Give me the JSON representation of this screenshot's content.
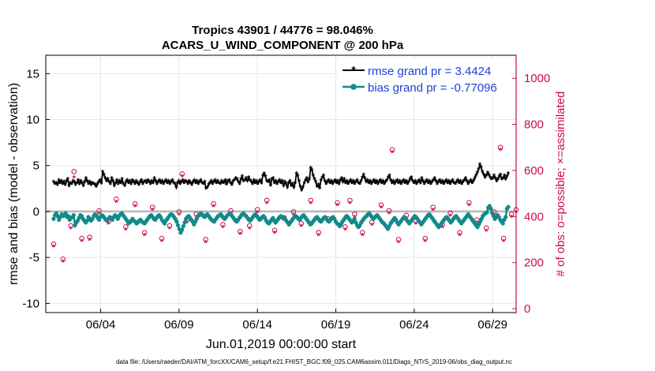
{
  "chart_data": {
    "type": "line",
    "title_line1": "Tropics 43901 / 44776 = 98.046%",
    "title_line2": "ACARS_U_WIND_COMPONENT @ 200 hPa",
    "ylabel": "rmse and bias (model - observation)",
    "ylabel_right": "# of obs: o=possible; ×=assimilated",
    "xlabel": "Jun.01,2019 00:00:00 start",
    "footnote": "data file: /Users/raeder/DAI/ATM_forcXX/CAM6_setup/f.e21.FHIST_BGC.f09_025.CAM6assim.011/Diags_NTrS_2019-06/obs_diag_output.nc",
    "xlim": [
      0.5,
      30.5
    ],
    "ylim": [
      -11,
      17
    ],
    "ylim_right": [
      -17,
      1100
    ],
    "yticks": [
      -10,
      -5,
      0,
      5,
      10,
      15
    ],
    "yticks_right": [
      0,
      200,
      400,
      600,
      800,
      1000
    ],
    "xticks": [
      {
        "x": 4,
        "label": "06/04"
      },
      {
        "x": 9,
        "label": "06/09"
      },
      {
        "x": 14,
        "label": "06/14"
      },
      {
        "x": 19,
        "label": "06/19"
      },
      {
        "x": 24,
        "label": "06/24"
      },
      {
        "x": 29,
        "label": "06/29"
      }
    ],
    "legend_position": "top-right",
    "colors": {
      "rmse": "#000000",
      "bias": "#128a8a",
      "obs": "#cc0a55",
      "zero_line": "#b8b8b8",
      "legend_text": "#1f3fd8",
      "grid": "#e6e6e6"
    },
    "series": [
      {
        "name": "rmse grand pr = 3.4424",
        "key": "rmse",
        "marker": "asterisk",
        "values": [
          3.2,
          3.0,
          3.1,
          2.9,
          3.4,
          3.1,
          3.3,
          3.0,
          3.2,
          2.9,
          3.3,
          3.5,
          2.8,
          3.1,
          3.0,
          3.3,
          3.2,
          2.9,
          3.1,
          3.4,
          3.0,
          3.3,
          3.1,
          2.8,
          3.2,
          3.6,
          3.3,
          3.0,
          3.2,
          2.9,
          3.1,
          3.0,
          2.9,
          2.7,
          3.0,
          3.2,
          3.4,
          3.1,
          4.3,
          4.0,
          3.6,
          3.3,
          3.5,
          3.2,
          3.0,
          3.6,
          3.3,
          2.8,
          3.1,
          3.4,
          3.0,
          3.3,
          3.1,
          3.5,
          3.0,
          2.8,
          3.2,
          3.4,
          3.1,
          3.3,
          3.0,
          3.4,
          3.2,
          3.0,
          3.3,
          3.1,
          2.9,
          3.2,
          3.4,
          3.0,
          3.2,
          3.3,
          3.1,
          3.4,
          3.2,
          3.0,
          3.3,
          3.1,
          3.6,
          3.3,
          3.0,
          3.2,
          3.4,
          3.1,
          3.3,
          3.0,
          3.2,
          3.4,
          3.1,
          3.3,
          3.0,
          3.2,
          3.4,
          3.1,
          3.0,
          2.6,
          3.1,
          3.3,
          3.0,
          3.2,
          3.4,
          3.1,
          3.3,
          3.2,
          3.0,
          3.3,
          3.1,
          2.9,
          3.2,
          3.4,
          3.1,
          3.3,
          3.0,
          3.2,
          3.4,
          3.1,
          3.0,
          3.2,
          2.5,
          2.6,
          2.9,
          3.1,
          3.3,
          3.0,
          3.2,
          3.4,
          3.1,
          3.3,
          3.1,
          3.0,
          3.3,
          3.1,
          3.2,
          3.4,
          3.0,
          3.3,
          3.4,
          3.1,
          2.9,
          3.3,
          3.4,
          3.6,
          3.5,
          3.2,
          3.0,
          3.5,
          3.8,
          3.3,
          3.4,
          3.6,
          3.3,
          3.7,
          3.4,
          3.2,
          3.0,
          3.4,
          3.1,
          3.3,
          3.0,
          3.2,
          3.4,
          3.1,
          3.9,
          4.1,
          3.8,
          3.3,
          3.2,
          3.4,
          2.8,
          3.5,
          3.6,
          3.1,
          3.3,
          3.0,
          3.2,
          3.4,
          3.1,
          3.3,
          2.8,
          3.2,
          3.0,
          2.6,
          3.1,
          3.3,
          2.8,
          3.0,
          2.6,
          3.1,
          4.1,
          3.9,
          3.3,
          2.7,
          2.3,
          2.6,
          3.1,
          3.4,
          3.6,
          3.2,
          3.5,
          4.7,
          4.5,
          3.9,
          3.5,
          3.2,
          2.7,
          2.9,
          2.5,
          3.4,
          3.7,
          3.9,
          3.3,
          3.0,
          3.2,
          3.4,
          3.1,
          3.3,
          3.0,
          3.2,
          3.4,
          3.1,
          3.3,
          3.0,
          3.4,
          3.6,
          3.2,
          3.5,
          3.1,
          3.3,
          3.0,
          3.2,
          3.4,
          3.1,
          3.3,
          3.0,
          3.2,
          3.4,
          3.1,
          3.0,
          3.3,
          3.7,
          4.0,
          3.6,
          3.2,
          3.4,
          3.1,
          3.3,
          3.0,
          3.2,
          3.4,
          3.1,
          3.3,
          3.0,
          3.2,
          3.4,
          3.1,
          3.3,
          3.0,
          3.2,
          3.4,
          3.7,
          3.9,
          3.4,
          3.1,
          3.3,
          3.0,
          3.2,
          3.4,
          3.1,
          3.3,
          3.0,
          3.2,
          3.4,
          3.1,
          3.3,
          3.0,
          3.2,
          3.5,
          3.7,
          3.3,
          3.1,
          3.3,
          3.0,
          3.2,
          3.4,
          3.1,
          3.6,
          3.3,
          3.0,
          3.2,
          3.4,
          3.1,
          3.3,
          3.0,
          3.2,
          3.4,
          3.6,
          3.3,
          3.0,
          3.2,
          3.4,
          3.1,
          3.3,
          3.0,
          3.2,
          3.4,
          3.1,
          3.3,
          3.0,
          3.2,
          3.4,
          3.1,
          3.0,
          3.2,
          3.4,
          3.1,
          3.3,
          3.0,
          3.2,
          3.4,
          3.6,
          3.3,
          3.0,
          3.2,
          3.4,
          3.1,
          3.3,
          3.6,
          3.9,
          4.2,
          4.6,
          5.1,
          4.8,
          4.3,
          4.0,
          3.7,
          3.9,
          4.2,
          4.0,
          3.7,
          3.5,
          3.6,
          3.9,
          3.6,
          3.3,
          3.5,
          3.8,
          4.0,
          3.5,
          3.6,
          3.9,
          3.5,
          3.8,
          4.1
        ]
      },
      {
        "name": "bias grand pr = -0.77096",
        "key": "bias",
        "marker": "dot",
        "values": [
          -0.8,
          -0.4,
          -0.2,
          -0.5,
          -0.9,
          -0.6,
          -0.3,
          -0.5,
          -0.4,
          -0.2,
          -0.6,
          -0.5,
          -0.9,
          -0.7,
          -0.6,
          -0.4,
          -1.5,
          -1.2,
          -1.0,
          -0.7,
          -0.4,
          -0.5,
          -0.8,
          -1.0,
          -1.2,
          -1.0,
          -0.6,
          -0.8,
          -1.0,
          -0.8,
          -0.5,
          -0.3,
          -0.4,
          -0.7,
          -0.9,
          -0.6,
          -0.4,
          -0.5,
          -0.7,
          -0.9,
          -1.0,
          -0.8,
          -0.6,
          -0.7,
          -0.9,
          -0.6,
          -0.4,
          -0.6,
          -0.8,
          -0.5,
          -0.3,
          -0.2,
          -0.4,
          -0.6,
          -0.8,
          -1.0,
          -1.3,
          -1.2,
          -1.0,
          -0.8,
          -1.0,
          -1.1,
          -1.3,
          -1.2,
          -1.0,
          -0.9,
          -1.1,
          -1.2,
          -1.3,
          -1.1,
          -0.9,
          -0.7,
          -0.5,
          -0.4,
          -0.6,
          -0.8,
          -0.9,
          -0.7,
          -0.5,
          -0.4,
          -0.6,
          -0.9,
          -1.1,
          -1.3,
          -1.0,
          -0.8,
          -0.6,
          -0.4,
          -0.3,
          -0.4,
          -0.6,
          -0.8,
          -1.1,
          -1.5,
          -1.9,
          -2.3,
          -2.0,
          -1.6,
          -1.2,
          -0.8,
          -0.6,
          -0.5,
          -0.7,
          -0.9,
          -1.1,
          -1.4,
          -1.1,
          -0.8,
          -0.5,
          -0.4,
          -0.2,
          -0.3,
          -0.5,
          -0.6,
          -0.4,
          -0.3,
          -0.5,
          -0.7,
          -0.9,
          -1.0,
          -1.1,
          -0.9,
          -0.7,
          -0.5,
          -0.4,
          -0.3,
          -0.5,
          -0.7,
          -0.8,
          -0.6,
          -0.4,
          -0.3,
          -0.2,
          -0.4,
          -0.6,
          -0.8,
          -1.0,
          -1.1,
          -0.9,
          -0.7,
          -0.5,
          -0.3,
          -0.2,
          -0.4,
          -0.5,
          -0.7,
          -0.9,
          -1.0,
          -0.8,
          -0.6,
          -0.4,
          -0.3,
          -0.5,
          -0.7,
          -0.9,
          -0.8,
          -0.6,
          -0.5,
          -0.7,
          -1.0,
          -1.2,
          -1.3,
          -1.1,
          -0.9,
          -0.7,
          -1.0,
          -1.2,
          -1.0,
          -0.8,
          -0.6,
          -0.5,
          -0.7,
          -0.6,
          -0.8,
          -1.0,
          -1.2,
          -1.4,
          -1.2,
          -1.0,
          -0.8,
          -0.6,
          -0.5,
          -0.6,
          -0.8,
          -0.9,
          -0.7,
          -0.5,
          -0.4,
          -0.6,
          -0.8,
          -1.0,
          -1.2,
          -1.4,
          -1.3,
          -1.1,
          -0.9,
          -0.7,
          -0.6,
          -0.8,
          -1.0,
          -1.1,
          -0.9,
          -0.7,
          -0.6,
          -0.8,
          -1.0,
          -1.1,
          -0.9,
          -0.7,
          -0.6,
          -0.8,
          -1.1,
          -1.3,
          -1.4,
          -1.6,
          -1.4,
          -1.1,
          -0.9,
          -0.7,
          -0.5,
          -0.6,
          -0.8,
          -1.0,
          -1.2,
          -1.0,
          -0.8,
          -1.2,
          -1.5,
          -1.7,
          -1.5,
          -1.2,
          -1.0,
          -0.8,
          -0.6,
          -0.5,
          -0.3,
          -0.2,
          -0.4,
          -0.6,
          -0.8,
          -0.7,
          -0.5,
          -0.4,
          -0.6,
          -0.8,
          -1.0,
          -1.2,
          -1.3,
          -1.5,
          -1.7,
          -1.9,
          -1.6,
          -1.3,
          -1.1,
          -0.9,
          -0.7,
          -0.9,
          -1.2,
          -1.4,
          -1.2,
          -1.0,
          -0.8,
          -0.6,
          -0.7,
          -0.9,
          -1.1,
          -1.3,
          -1.1,
          -0.9,
          -0.7,
          -0.5,
          -0.6,
          -0.8,
          -1.0,
          -1.2,
          -1.4,
          -1.2,
          -1.0,
          -0.8,
          -0.6,
          -0.4,
          -0.3,
          -0.5,
          -0.7,
          -0.9,
          -1.1,
          -1.3,
          -1.5,
          -1.7,
          -1.5,
          -1.3,
          -1.1,
          -0.9,
          -0.7,
          -0.6,
          -0.8,
          -1.0,
          -1.2,
          -1.0,
          -0.8,
          -0.6,
          -0.5,
          -0.7,
          -0.9,
          -1.1,
          -1.3,
          -1.1,
          -0.9,
          -0.7,
          -0.5,
          -0.3,
          -0.5,
          -0.7,
          -0.9,
          -1.1,
          -1.3,
          -1.5,
          -1.7,
          -1.4,
          -1.1,
          -0.8,
          -0.5,
          -0.3,
          -0.2,
          -0.1,
          0.4,
          0.6,
          0.3,
          -0.2,
          -0.5,
          -0.8,
          -0.6,
          -0.4,
          -0.6,
          -0.9,
          -1.1,
          -1.3,
          -0.9,
          -0.6,
          0.3,
          0.5
        ]
      },
      {
        "name": "obs possible",
        "key": "obs_possible",
        "marker": "circle",
        "x": [
          1.0,
          1.6,
          2.1,
          2.8,
          3.3,
          3.9,
          4.5,
          5.0,
          5.6,
          6.2,
          6.8,
          7.3,
          7.9,
          8.4,
          9.0,
          9.5,
          10.1,
          10.7,
          11.2,
          11.8,
          12.3,
          12.9,
          13.5,
          14.0,
          14.6,
          15.1,
          15.7,
          16.3,
          16.8,
          17.4,
          17.9,
          18.5,
          19.1,
          19.6,
          20.2,
          20.7,
          21.3,
          21.9,
          22.4,
          23.0,
          23.5,
          24.1,
          24.7,
          25.2,
          25.8,
          26.3,
          26.9,
          27.5,
          28.0,
          28.6,
          29.1,
          29.7,
          30.2,
          30.5,
          2.3,
          9.2,
          12.0,
          19.9,
          22.6,
          29.5
        ],
        "values": [
          280,
          215,
          360,
          305,
          310,
          425,
          380,
          475,
          355,
          455,
          330,
          440,
          305,
          360,
          420,
          385,
          410,
          300,
          455,
          365,
          425,
          335,
          360,
          430,
          470,
          340,
          395,
          420,
          370,
          470,
          330,
          390,
          460,
          355,
          410,
          330,
          375,
          450,
          425,
          300,
          405,
          380,
          305,
          440,
          365,
          415,
          330,
          460,
          385,
          350,
          420,
          305,
          410,
          430,
          595,
          585,
          550,
          470,
          690,
          700
        ]
      },
      {
        "name": "obs assimilated",
        "key": "obs_assimilated",
        "marker": "asterisk",
        "x": [
          1.0,
          1.6,
          2.1,
          2.8,
          3.3,
          3.9,
          4.5,
          5.0,
          5.6,
          6.2,
          6.8,
          7.3,
          7.9,
          8.4,
          9.0,
          9.5,
          10.1,
          10.7,
          11.2,
          11.8,
          12.3,
          12.9,
          13.5,
          14.0,
          14.6,
          15.1,
          15.7,
          16.3,
          16.8,
          17.4,
          17.9,
          18.5,
          19.1,
          19.6,
          20.2,
          20.7,
          21.3,
          21.9,
          22.4,
          23.0,
          23.5,
          24.1,
          24.7,
          25.2,
          25.8,
          26.3,
          26.9,
          27.5,
          28.0,
          28.6,
          29.1,
          29.7,
          30.2,
          30.5,
          2.3,
          9.2,
          12.0,
          19.9,
          22.6,
          29.5
        ],
        "values": [
          270,
          205,
          350,
          295,
          300,
          415,
          370,
          465,
          345,
          445,
          320,
          430,
          295,
          350,
          410,
          375,
          400,
          290,
          445,
          355,
          415,
          325,
          350,
          420,
          460,
          330,
          385,
          410,
          360,
          460,
          320,
          380,
          450,
          345,
          400,
          320,
          365,
          440,
          415,
          290,
          395,
          370,
          295,
          430,
          355,
          405,
          320,
          450,
          375,
          340,
          410,
          295,
          400,
          420,
          570,
          575,
          540,
          460,
          680,
          690
        ]
      }
    ]
  }
}
